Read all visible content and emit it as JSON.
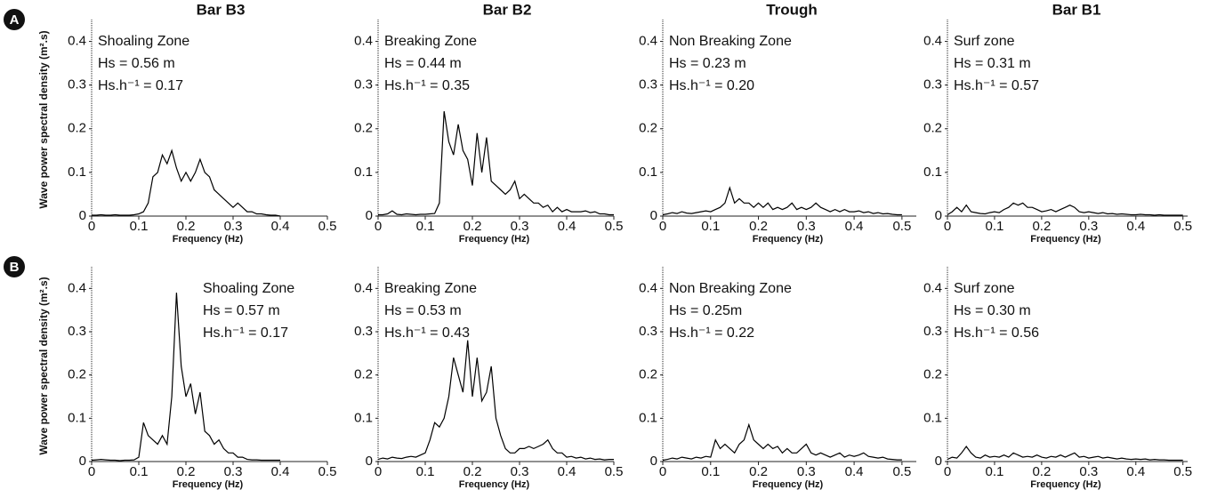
{
  "chart_data": [
    {
      "type": "line",
      "panel_label": "A",
      "ylabel": "Wave power spectral density (m².s)",
      "title": "Bar B3",
      "xlabel": "Frequency (Hz)",
      "annotations": [
        "Shoaling Zone",
        "Hs = 0.56 m",
        "Hs.h⁻¹ = 0.17"
      ],
      "color": "#000000",
      "xlim": [
        0,
        0.5
      ],
      "ylim": [
        0,
        0.45
      ],
      "xticks": [
        0,
        0.1,
        0.2,
        0.3,
        0.4,
        0.5
      ],
      "yticks": [
        0,
        0.1,
        0.2,
        0.3,
        0.4
      ],
      "x": [
        0,
        0.01,
        0.02,
        0.03,
        0.04,
        0.05,
        0.06,
        0.07,
        0.08,
        0.09,
        0.1,
        0.11,
        0.12,
        0.13,
        0.14,
        0.15,
        0.16,
        0.17,
        0.18,
        0.19,
        0.2,
        0.21,
        0.22,
        0.23,
        0.24,
        0.25,
        0.26,
        0.27,
        0.28,
        0.29,
        0.3,
        0.31,
        0.32,
        0.33,
        0.34,
        0.35,
        0.36,
        0.37,
        0.38,
        0.39,
        0.4,
        0.41,
        0.42,
        0.43,
        0.44,
        0.45,
        0.46,
        0.47,
        0.48,
        0.49,
        0.5
      ],
      "values": [
        0.002,
        0.002,
        0.003,
        0.002,
        0.002,
        0.003,
        0.002,
        0.002,
        0.002,
        0.003,
        0.005,
        0.01,
        0.03,
        0.09,
        0.1,
        0.14,
        0.12,
        0.15,
        0.11,
        0.08,
        0.1,
        0.08,
        0.1,
        0.13,
        0.1,
        0.09,
        0.06,
        0.05,
        0.04,
        0.03,
        0.02,
        0.03,
        0.02,
        0.01,
        0.01,
        0.005,
        0.005,
        0.003,
        0.002,
        0.002,
        0,
        null,
        null,
        null,
        null,
        null,
        null,
        null,
        null,
        null,
        null
      ]
    },
    {
      "type": "line",
      "title": "Bar B2",
      "xlabel": "Frequency (Hz)",
      "annotations": [
        "Breaking Zone",
        "Hs = 0.44 m",
        "Hs.h⁻¹ = 0.35"
      ],
      "color": "#000000",
      "xlim": [
        0,
        0.5
      ],
      "ylim": [
        0,
        0.45
      ],
      "xticks": [
        0,
        0.1,
        0.2,
        0.3,
        0.4,
        0.5
      ],
      "yticks": [
        0,
        0.1,
        0.2,
        0.3,
        0.4
      ],
      "x": [
        0,
        0.01,
        0.02,
        0.03,
        0.04,
        0.05,
        0.06,
        0.07,
        0.08,
        0.09,
        0.1,
        0.11,
        0.12,
        0.13,
        0.14,
        0.15,
        0.16,
        0.17,
        0.18,
        0.19,
        0.2,
        0.21,
        0.22,
        0.23,
        0.24,
        0.25,
        0.26,
        0.27,
        0.28,
        0.29,
        0.3,
        0.31,
        0.32,
        0.33,
        0.34,
        0.35,
        0.36,
        0.37,
        0.38,
        0.39,
        0.4,
        0.41,
        0.42,
        0.43,
        0.44,
        0.45,
        0.46,
        0.47,
        0.48,
        0.49,
        0.5
      ],
      "values": [
        0.003,
        0.003,
        0.005,
        0.012,
        0.004,
        0.003,
        0.005,
        0.004,
        0.003,
        0.004,
        0.004,
        0.005,
        0.006,
        0.03,
        0.24,
        0.17,
        0.14,
        0.21,
        0.15,
        0.13,
        0.07,
        0.19,
        0.1,
        0.18,
        0.08,
        0.07,
        0.06,
        0.05,
        0.06,
        0.08,
        0.04,
        0.05,
        0.04,
        0.03,
        0.03,
        0.02,
        0.025,
        0.01,
        0.02,
        0.01,
        0.015,
        0.01,
        0.01,
        0.01,
        0.012,
        0.008,
        0.01,
        0.005,
        0.005,
        0.003,
        0.003
      ]
    },
    {
      "type": "line",
      "title": "Trough",
      "xlabel": "Frequency (Hz)",
      "annotations": [
        "Non Breaking Zone",
        "Hs = 0.23 m",
        "Hs.h⁻¹ = 0.20"
      ],
      "color": "#000000",
      "xlim": [
        0,
        0.53
      ],
      "ylim": [
        0,
        0.45
      ],
      "xticks": [
        0,
        0.1,
        0.2,
        0.3,
        0.4,
        0.5
      ],
      "yticks": [
        0,
        0.1,
        0.2,
        0.3,
        0.4
      ],
      "x": [
        0,
        0.01,
        0.02,
        0.03,
        0.04,
        0.05,
        0.06,
        0.07,
        0.08,
        0.09,
        0.1,
        0.11,
        0.12,
        0.13,
        0.14,
        0.15,
        0.16,
        0.17,
        0.18,
        0.19,
        0.2,
        0.21,
        0.22,
        0.23,
        0.24,
        0.25,
        0.26,
        0.27,
        0.28,
        0.29,
        0.3,
        0.31,
        0.32,
        0.33,
        0.34,
        0.35,
        0.36,
        0.37,
        0.38,
        0.39,
        0.4,
        0.41,
        0.42,
        0.43,
        0.44,
        0.45,
        0.46,
        0.47,
        0.48,
        0.49,
        0.5
      ],
      "values": [
        0.003,
        0.005,
        0.008,
        0.006,
        0.01,
        0.007,
        0.006,
        0.008,
        0.01,
        0.012,
        0.01,
        0.015,
        0.02,
        0.03,
        0.065,
        0.03,
        0.04,
        0.03,
        0.03,
        0.02,
        0.03,
        0.02,
        0.03,
        0.015,
        0.02,
        0.015,
        0.02,
        0.03,
        0.015,
        0.02,
        0.015,
        0.02,
        0.03,
        0.02,
        0.015,
        0.01,
        0.015,
        0.01,
        0.015,
        0.01,
        0.01,
        0.012,
        0.008,
        0.01,
        0.006,
        0.008,
        0.005,
        0.006,
        0.004,
        0.003,
        0.003
      ]
    },
    {
      "type": "line",
      "title": "Bar B1",
      "xlabel": "Frequency (Hz)",
      "annotations": [
        "Surf zone",
        "Hs = 0.31 m",
        "Hs.h⁻¹ = 0.57"
      ],
      "color": "#000000",
      "xlim": [
        0,
        0.51
      ],
      "ylim": [
        0,
        0.45
      ],
      "xticks": [
        0,
        0.1,
        0.2,
        0.3,
        0.4,
        0.5
      ],
      "yticks": [
        0,
        0.1,
        0.2,
        0.3,
        0.4
      ],
      "x": [
        0,
        0.01,
        0.02,
        0.03,
        0.04,
        0.05,
        0.06,
        0.07,
        0.08,
        0.09,
        0.1,
        0.11,
        0.12,
        0.13,
        0.14,
        0.15,
        0.16,
        0.17,
        0.18,
        0.19,
        0.2,
        0.21,
        0.22,
        0.23,
        0.24,
        0.25,
        0.26,
        0.27,
        0.28,
        0.29,
        0.3,
        0.31,
        0.32,
        0.33,
        0.34,
        0.35,
        0.36,
        0.37,
        0.38,
        0.39,
        0.4,
        0.41,
        0.42,
        0.43,
        0.44,
        0.45,
        0.46,
        0.47,
        0.48,
        0.49,
        0.5
      ],
      "values": [
        0.003,
        0.01,
        0.02,
        0.01,
        0.025,
        0.01,
        0.008,
        0.006,
        0.005,
        0.008,
        0.01,
        0.008,
        0.015,
        0.02,
        0.03,
        0.025,
        0.03,
        0.02,
        0.02,
        0.015,
        0.01,
        0.012,
        0.015,
        0.01,
        0.015,
        0.02,
        0.025,
        0.02,
        0.01,
        0.008,
        0.01,
        0.008,
        0.006,
        0.008,
        0.005,
        0.006,
        0.004,
        0.005,
        0.004,
        0.003,
        0.003,
        0.004,
        0.003,
        0.003,
        0.002,
        0.003,
        0.002,
        0.002,
        0.002,
        0.002,
        0.002
      ]
    },
    {
      "type": "line",
      "panel_label": "B",
      "ylabel": "Wave power spectral density (m².s)",
      "xlabel": "Frequency (Hz)",
      "annotations": [
        "Shoaling Zone",
        "Hs = 0.57 m",
        "Hs.h⁻¹ = 0.17"
      ],
      "color": "#000000",
      "xlim": [
        0,
        0.5
      ],
      "ylim": [
        0,
        0.45
      ],
      "xticks": [
        0,
        0.1,
        0.2,
        0.3,
        0.4,
        0.5
      ],
      "yticks": [
        0,
        0.1,
        0.2,
        0.3,
        0.4
      ],
      "x": [
        0,
        0.01,
        0.02,
        0.03,
        0.04,
        0.05,
        0.06,
        0.07,
        0.08,
        0.09,
        0.1,
        0.11,
        0.12,
        0.13,
        0.14,
        0.15,
        0.16,
        0.17,
        0.18,
        0.19,
        0.2,
        0.21,
        0.22,
        0.23,
        0.24,
        0.25,
        0.26,
        0.27,
        0.28,
        0.29,
        0.3,
        0.31,
        0.32,
        0.33,
        0.34,
        0.35,
        0.36,
        0.37,
        0.38,
        0.39,
        0.4,
        0.41,
        0.42,
        0.43,
        0.44,
        0.45,
        0.46,
        0.47,
        0.48,
        0.49,
        0.5
      ],
      "values": [
        0.003,
        0.004,
        0.005,
        0.004,
        0.003,
        0.003,
        0.002,
        0.003,
        0.003,
        0.004,
        0.01,
        0.09,
        0.06,
        0.05,
        0.04,
        0.06,
        0.04,
        0.15,
        0.39,
        0.22,
        0.15,
        0.18,
        0.11,
        0.16,
        0.07,
        0.06,
        0.04,
        0.05,
        0.03,
        0.02,
        0.02,
        0.01,
        0.01,
        0.005,
        0.004,
        0.004,
        0.003,
        0.003,
        0.003,
        0.003,
        0.003,
        null,
        null,
        null,
        null,
        null,
        null,
        null,
        null,
        null,
        null
      ]
    },
    {
      "type": "line",
      "xlabel": "Frequency (Hz)",
      "annotations": [
        "Breaking Zone",
        "Hs = 0.53 m",
        "Hs.h⁻¹ = 0.43"
      ],
      "color": "#000000",
      "xlim": [
        0,
        0.5
      ],
      "ylim": [
        0,
        0.45
      ],
      "xticks": [
        0,
        0.1,
        0.2,
        0.3,
        0.4,
        0.5
      ],
      "yticks": [
        0,
        0.1,
        0.2,
        0.3,
        0.4
      ],
      "x": [
        0,
        0.01,
        0.02,
        0.03,
        0.04,
        0.05,
        0.06,
        0.07,
        0.08,
        0.09,
        0.1,
        0.11,
        0.12,
        0.13,
        0.14,
        0.15,
        0.16,
        0.17,
        0.18,
        0.19,
        0.2,
        0.21,
        0.22,
        0.23,
        0.24,
        0.25,
        0.26,
        0.27,
        0.28,
        0.29,
        0.3,
        0.31,
        0.32,
        0.33,
        0.34,
        0.35,
        0.36,
        0.37,
        0.38,
        0.39,
        0.4,
        0.41,
        0.42,
        0.43,
        0.44,
        0.45,
        0.46,
        0.47,
        0.48,
        0.49,
        0.5
      ],
      "values": [
        0.005,
        0.008,
        0.006,
        0.01,
        0.008,
        0.007,
        0.01,
        0.012,
        0.01,
        0.015,
        0.02,
        0.05,
        0.09,
        0.08,
        0.1,
        0.15,
        0.24,
        0.2,
        0.16,
        0.28,
        0.15,
        0.24,
        0.14,
        0.16,
        0.22,
        0.1,
        0.06,
        0.03,
        0.02,
        0.02,
        0.03,
        0.03,
        0.035,
        0.03,
        0.035,
        0.04,
        0.05,
        0.03,
        0.02,
        0.02,
        0.01,
        0.012,
        0.008,
        0.01,
        0.006,
        0.008,
        0.005,
        0.006,
        0.004,
        0.005,
        0.005
      ]
    },
    {
      "type": "line",
      "xlabel": "Frequency (Hz)",
      "annotations": [
        "Non Breaking Zone",
        "Hs = 0.25m",
        "Hs.h⁻¹ = 0.22"
      ],
      "color": "#000000",
      "xlim": [
        0,
        0.53
      ],
      "ylim": [
        0,
        0.45
      ],
      "xticks": [
        0,
        0.1,
        0.2,
        0.3,
        0.4,
        0.5
      ],
      "yticks": [
        0,
        0.1,
        0.2,
        0.3,
        0.4
      ],
      "x": [
        0,
        0.01,
        0.02,
        0.03,
        0.04,
        0.05,
        0.06,
        0.07,
        0.08,
        0.09,
        0.1,
        0.11,
        0.12,
        0.13,
        0.14,
        0.15,
        0.16,
        0.17,
        0.18,
        0.19,
        0.2,
        0.21,
        0.22,
        0.23,
        0.24,
        0.25,
        0.26,
        0.27,
        0.28,
        0.29,
        0.3,
        0.31,
        0.32,
        0.33,
        0.34,
        0.35,
        0.36,
        0.37,
        0.38,
        0.39,
        0.4,
        0.41,
        0.42,
        0.43,
        0.44,
        0.45,
        0.46,
        0.47,
        0.48,
        0.49,
        0.5
      ],
      "values": [
        0.003,
        0.005,
        0.008,
        0.006,
        0.01,
        0.008,
        0.006,
        0.01,
        0.008,
        0.012,
        0.01,
        0.05,
        0.03,
        0.04,
        0.03,
        0.02,
        0.04,
        0.05,
        0.085,
        0.05,
        0.04,
        0.03,
        0.04,
        0.03,
        0.035,
        0.02,
        0.03,
        0.02,
        0.02,
        0.03,
        0.04,
        0.02,
        0.015,
        0.02,
        0.015,
        0.01,
        0.015,
        0.02,
        0.01,
        0.015,
        0.012,
        0.015,
        0.02,
        0.012,
        0.01,
        0.008,
        0.01,
        0.006,
        0.005,
        0.004,
        0.004
      ]
    },
    {
      "type": "line",
      "xlabel": "Frequency (Hz)",
      "annotations": [
        "Surf zone",
        "Hs = 0.30 m",
        "Hs.h⁻¹ = 0.56"
      ],
      "color": "#000000",
      "xlim": [
        0,
        0.51
      ],
      "ylim": [
        0,
        0.45
      ],
      "xticks": [
        0,
        0.1,
        0.2,
        0.3,
        0.4,
        0.5
      ],
      "yticks": [
        0,
        0.1,
        0.2,
        0.3,
        0.4
      ],
      "x": [
        0,
        0.01,
        0.02,
        0.03,
        0.04,
        0.05,
        0.06,
        0.07,
        0.08,
        0.09,
        0.1,
        0.11,
        0.12,
        0.13,
        0.14,
        0.15,
        0.16,
        0.17,
        0.18,
        0.19,
        0.2,
        0.21,
        0.22,
        0.23,
        0.24,
        0.25,
        0.26,
        0.27,
        0.28,
        0.29,
        0.3,
        0.31,
        0.32,
        0.33,
        0.34,
        0.35,
        0.36,
        0.37,
        0.38,
        0.39,
        0.4,
        0.41,
        0.42,
        0.43,
        0.44,
        0.45,
        0.46,
        0.47,
        0.48,
        0.49,
        0.5
      ],
      "values": [
        0.005,
        0.01,
        0.008,
        0.02,
        0.035,
        0.02,
        0.01,
        0.008,
        0.015,
        0.01,
        0.012,
        0.01,
        0.015,
        0.01,
        0.02,
        0.015,
        0.01,
        0.012,
        0.01,
        0.015,
        0.01,
        0.008,
        0.012,
        0.01,
        0.015,
        0.01,
        0.015,
        0.02,
        0.01,
        0.012,
        0.008,
        0.01,
        0.012,
        0.008,
        0.01,
        0.008,
        0.006,
        0.008,
        0.006,
        0.005,
        0.006,
        0.005,
        0.006,
        0.004,
        0.005,
        0.004,
        0.004,
        0.003,
        0.003,
        0.003,
        0.003
      ]
    }
  ]
}
